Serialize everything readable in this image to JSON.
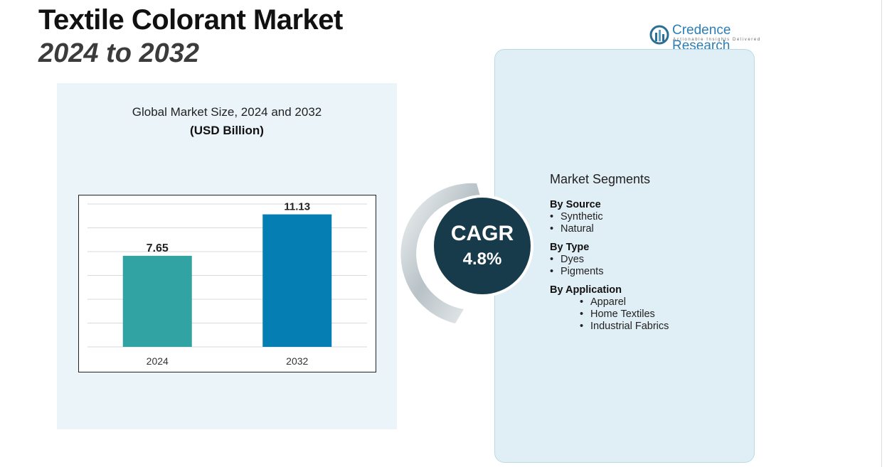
{
  "title": "Textile Colorant Market",
  "subtitle": "2024 to 2032",
  "logo": {
    "name": "Credence Research",
    "tagline": "Actionable Insights Delivered"
  },
  "chart_data": {
    "type": "bar",
    "title": "Global Market Size, 2024 and 2032",
    "unit_label": "(USD Billion)",
    "categories": [
      "2024",
      "2032"
    ],
    "values": [
      7.65,
      11.13
    ],
    "value_labels": [
      "7.65",
      "11.13"
    ],
    "colors": [
      "#31a3a3",
      "#057fb3"
    ],
    "ylim": [
      0,
      12
    ],
    "grid": true,
    "xlabel": "",
    "ylabel": ""
  },
  "cagr": {
    "label": "CAGR",
    "value": "4.8%"
  },
  "segments": {
    "heading": "Market Segments",
    "groups": [
      {
        "title": "By Source",
        "items": [
          "Synthetic",
          "Natural"
        ]
      },
      {
        "title": "By Type",
        "items": [
          "Dyes",
          "Pigments"
        ]
      },
      {
        "title": "By Application",
        "items": [
          "Apparel",
          "Home Textiles",
          "Industrial Fabrics"
        ]
      }
    ]
  }
}
